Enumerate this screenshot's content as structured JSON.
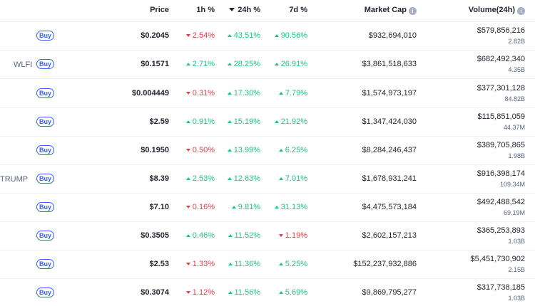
{
  "header": {
    "price": "Price",
    "h1": "1h %",
    "h24": "24h %",
    "d7": "7d %",
    "market_cap": "Market Cap",
    "volume": "Volume(24h)",
    "info_glyph": "i"
  },
  "buy_label": "Buy",
  "rows": [
    {
      "symbol": "",
      "price": "$0.2045",
      "h1": "2.54%",
      "h1_dir": "down",
      "h24": "43.51%",
      "h24_dir": "up",
      "d7": "90.56%",
      "d7_dir": "up",
      "market_cap": "$932,694,010",
      "volume": "$579,856,216",
      "volume_sub": "2.82B"
    },
    {
      "symbol": "WLFI",
      "price": "$0.1571",
      "h1": "2.71%",
      "h1_dir": "up",
      "h24": "28.25%",
      "h24_dir": "up",
      "d7": "26.91%",
      "d7_dir": "up",
      "market_cap": "$3,861,518,633",
      "volume": "$682,492,340",
      "volume_sub": "4.35B"
    },
    {
      "symbol": "",
      "price": "$0.004449",
      "h1": "0.31%",
      "h1_dir": "down",
      "h24": "17.30%",
      "h24_dir": "up",
      "d7": "7.79%",
      "d7_dir": "up",
      "market_cap": "$1,574,973,197",
      "volume": "$377,301,128",
      "volume_sub": "84.82B"
    },
    {
      "symbol": "",
      "price": "$2.59",
      "h1": "0.91%",
      "h1_dir": "up",
      "h24": "15.19%",
      "h24_dir": "up",
      "d7": "21.92%",
      "d7_dir": "up",
      "market_cap": "$1,347,424,030",
      "volume": "$115,851,059",
      "volume_sub": "44.37M"
    },
    {
      "symbol": "",
      "price": "$0.1950",
      "h1": "0.50%",
      "h1_dir": "down",
      "h24": "13.99%",
      "h24_dir": "up",
      "d7": "6.25%",
      "d7_dir": "up",
      "market_cap": "$8,284,246,437",
      "volume": "$389,705,865",
      "volume_sub": "1.98B"
    },
    {
      "symbol": "TRUMP",
      "price": "$8.39",
      "h1": "2.53%",
      "h1_dir": "up",
      "h24": "12.63%",
      "h24_dir": "up",
      "d7": "7.01%",
      "d7_dir": "up",
      "market_cap": "$1,678,931,241",
      "volume": "$916,398,174",
      "volume_sub": "109.34M"
    },
    {
      "symbol": "",
      "price": "$7.10",
      "h1": "0.16%",
      "h1_dir": "down",
      "h24": "9.81%",
      "h24_dir": "up",
      "d7": "31.13%",
      "d7_dir": "up",
      "market_cap": "$4,475,573,184",
      "volume": "$492,488,542",
      "volume_sub": "69.19M"
    },
    {
      "symbol": "",
      "price": "$0.3505",
      "h1": "0.46%",
      "h1_dir": "up",
      "h24": "11.52%",
      "h24_dir": "up",
      "d7": "1.19%",
      "d7_dir": "down",
      "market_cap": "$2,602,157,213",
      "volume": "$365,253,893",
      "volume_sub": "1.03B"
    },
    {
      "symbol": "",
      "price": "$2.53",
      "h1": "1.33%",
      "h1_dir": "down",
      "h24": "11.36%",
      "h24_dir": "up",
      "d7": "5.25%",
      "d7_dir": "up",
      "market_cap": "$152,237,932,886",
      "volume": "$5,451,730,902",
      "volume_sub": "2.15B"
    },
    {
      "symbol": "",
      "price": "$0.3074",
      "h1": "1.12%",
      "h1_dir": "down",
      "h24": "11.56%",
      "h24_dir": "up",
      "d7": "5.69%",
      "d7_dir": "up",
      "market_cap": "$9,869,795,277",
      "volume": "$317,738,185",
      "volume_sub": "1.03B"
    }
  ],
  "colors": {
    "up": "#16c784",
    "down": "#ea3943",
    "accent": "#3861fb"
  }
}
